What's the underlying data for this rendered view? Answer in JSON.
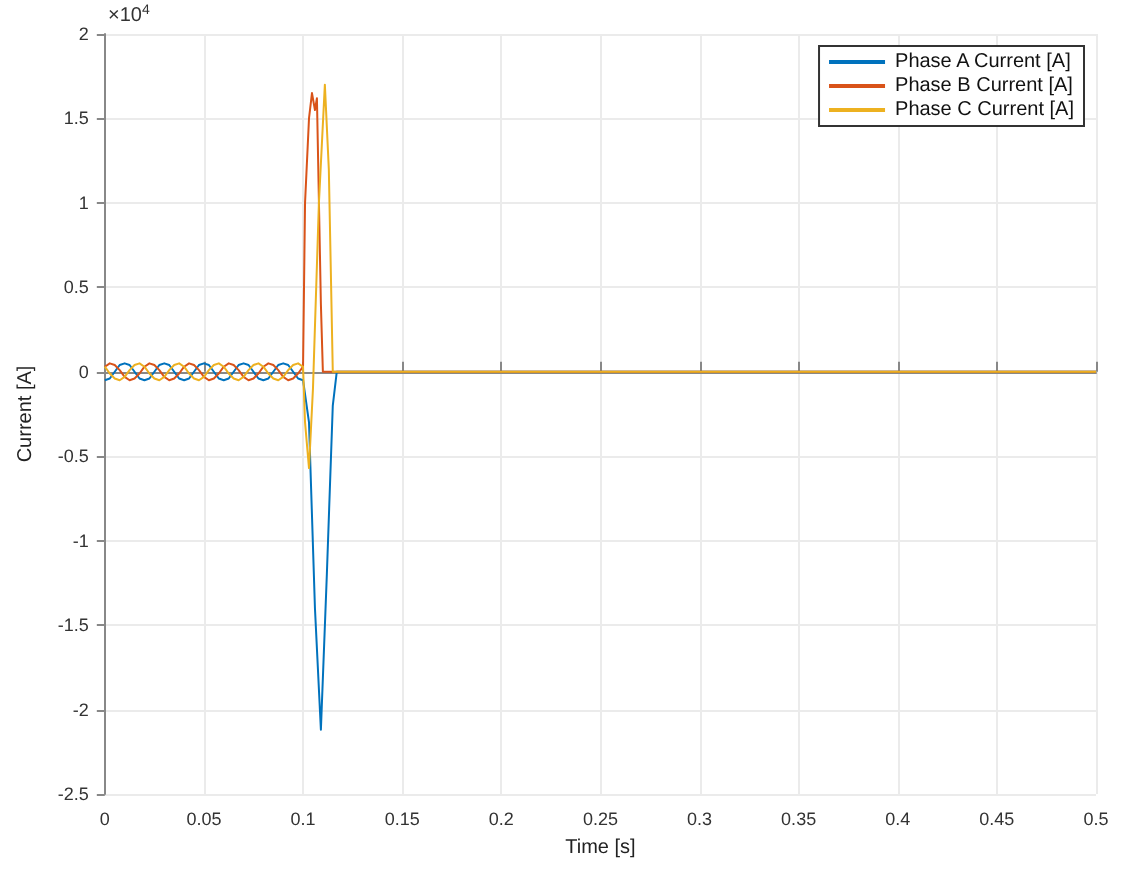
{
  "chart_data": {
    "type": "line",
    "xlabel": "Time [s]",
    "ylabel": "Current [A]",
    "annotations": [
      "×10$^{4}$"
    ],
    "xlim": [
      0,
      0.5
    ],
    "xticks": [
      0,
      0.05,
      0.1,
      0.15,
      0.2,
      0.25,
      0.3,
      0.35,
      0.4,
      0.45,
      0.5
    ],
    "ylim": [
      -2.5,
      2
    ],
    "yticks": [
      -2.5,
      -2,
      -1.5,
      -1,
      -0.5,
      0,
      0.5,
      1,
      1.5,
      2
    ],
    "grid": true,
    "legend": "top right",
    "series": [
      {
        "name": "Phase A Current [A]",
        "color": "#0072bd",
        "x": [
          0,
          0.0025,
          0.005,
          0.0075,
          0.01,
          0.0125,
          0.015,
          0.0175,
          0.02,
          0.0225,
          0.025,
          0.0275,
          0.03,
          0.0325,
          0.035,
          0.0375,
          0.04,
          0.0425,
          0.045,
          0.0475,
          0.05,
          0.0525,
          0.055,
          0.0575,
          0.06,
          0.0625,
          0.065,
          0.0675,
          0.07,
          0.0725,
          0.075,
          0.0775,
          0.08,
          0.0825,
          0.085,
          0.0875,
          0.09,
          0.0925,
          0.095,
          0.0975,
          0.1,
          0.103,
          0.106,
          0.109,
          0.112,
          0.115,
          0.117,
          0.5
        ],
        "values": [
          -0.05,
          -0.04,
          0,
          0.04,
          0.05,
          0.04,
          0,
          -0.04,
          -0.05,
          -0.04,
          0,
          0.04,
          0.05,
          0.04,
          0,
          -0.04,
          -0.05,
          -0.04,
          0,
          0.04,
          0.05,
          0.04,
          0,
          -0.04,
          -0.05,
          -0.04,
          0,
          0.04,
          0.05,
          0.04,
          0,
          -0.04,
          -0.05,
          -0.04,
          0,
          0.04,
          0.05,
          0.04,
          0,
          -0.04,
          -0.05,
          -0.3,
          -1.4,
          -2.12,
          -1.2,
          -0.2,
          0,
          0
        ]
      },
      {
        "name": "Phase B Current [A]",
        "color": "#d95319",
        "x": [
          0,
          0.0025,
          0.005,
          0.0075,
          0.01,
          0.0125,
          0.015,
          0.0175,
          0.02,
          0.0225,
          0.025,
          0.0275,
          0.03,
          0.0325,
          0.035,
          0.0375,
          0.04,
          0.0425,
          0.045,
          0.0475,
          0.05,
          0.0525,
          0.055,
          0.0575,
          0.06,
          0.0625,
          0.065,
          0.0675,
          0.07,
          0.0725,
          0.075,
          0.0775,
          0.08,
          0.0825,
          0.085,
          0.0875,
          0.09,
          0.0925,
          0.095,
          0.0975,
          0.1,
          0.101,
          0.103,
          0.1045,
          0.106,
          0.107,
          0.109,
          0.11,
          0.5
        ],
        "values": [
          0.03,
          0.05,
          0.04,
          0.01,
          -0.03,
          -0.05,
          -0.04,
          -0.01,
          0.03,
          0.05,
          0.04,
          0.01,
          -0.03,
          -0.05,
          -0.04,
          -0.01,
          0.03,
          0.05,
          0.04,
          0.01,
          -0.03,
          -0.05,
          -0.04,
          -0.01,
          0.03,
          0.05,
          0.04,
          0.01,
          -0.03,
          -0.05,
          -0.04,
          -0.01,
          0.03,
          0.05,
          0.04,
          0.01,
          -0.03,
          -0.05,
          -0.04,
          -0.01,
          0.03,
          1,
          1.5,
          1.65,
          1.55,
          1.62,
          0.4,
          0,
          0
        ]
      },
      {
        "name": "Phase C Current [A]",
        "color": "#edb120",
        "x": [
          0,
          0.0025,
          0.005,
          0.0075,
          0.01,
          0.0125,
          0.015,
          0.0175,
          0.02,
          0.0225,
          0.025,
          0.0275,
          0.03,
          0.0325,
          0.035,
          0.0375,
          0.04,
          0.0425,
          0.045,
          0.0475,
          0.05,
          0.0525,
          0.055,
          0.0575,
          0.06,
          0.0625,
          0.065,
          0.0675,
          0.07,
          0.0725,
          0.075,
          0.0775,
          0.08,
          0.0825,
          0.085,
          0.0875,
          0.09,
          0.0925,
          0.095,
          0.0975,
          0.1,
          0.101,
          0.103,
          0.105,
          0.108,
          0.111,
          0.113,
          0.115,
          0.5
        ],
        "values": [
          0.03,
          -0.01,
          -0.04,
          -0.05,
          -0.03,
          0.01,
          0.04,
          0.05,
          0.03,
          -0.01,
          -0.04,
          -0.05,
          -0.03,
          0.01,
          0.04,
          0.05,
          0.03,
          -0.01,
          -0.04,
          -0.05,
          -0.03,
          0.01,
          0.04,
          0.05,
          0.03,
          -0.01,
          -0.04,
          -0.05,
          -0.03,
          0.01,
          0.04,
          0.05,
          0.03,
          -0.01,
          -0.04,
          -0.05,
          -0.03,
          0.01,
          0.04,
          0.05,
          0.03,
          -0.3,
          -0.57,
          -0.1,
          1,
          1.7,
          1.2,
          0,
          0
        ]
      }
    ]
  }
}
